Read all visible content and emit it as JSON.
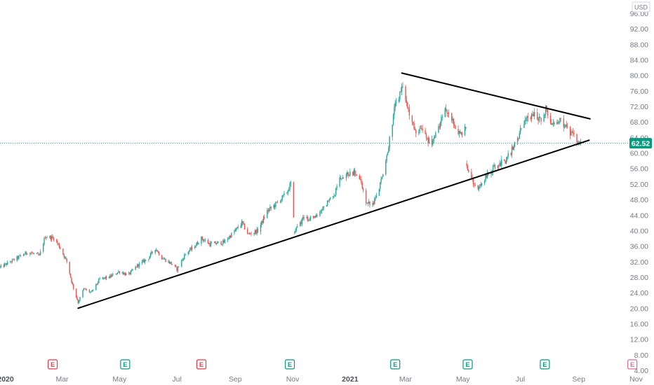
{
  "chart_data": {
    "type": "candlestick",
    "currency": "USD",
    "last_price": 62.52,
    "last_price_label": "62.52",
    "y_axis": {
      "range": [
        4,
        96
      ],
      "ticks": [
        "96.00",
        "92.00",
        "88.00",
        "84.00",
        "80.00",
        "76.00",
        "72.00",
        "68.00",
        "64.00",
        "60.00",
        "56.00",
        "52.00",
        "48.00",
        "44.00",
        "40.00",
        "36.00",
        "32.00",
        "28.00",
        "24.00",
        "20.00",
        "16.00",
        "12.00",
        "8.00",
        "4.00"
      ]
    },
    "x_axis": {
      "range": [
        "2019-12-26",
        "2021-11-20"
      ],
      "ticks": [
        {
          "label": "2020",
          "date": "2020-01-01",
          "year": true
        },
        {
          "label": "Mar",
          "date": "2020-03-01"
        },
        {
          "label": "May",
          "date": "2020-05-01"
        },
        {
          "label": "Jul",
          "date": "2020-07-01"
        },
        {
          "label": "Sep",
          "date": "2020-09-01"
        },
        {
          "label": "Nov",
          "date": "2020-11-01"
        },
        {
          "label": "2021",
          "date": "2021-01-01",
          "year": true
        },
        {
          "label": "Mar",
          "date": "2021-03-01"
        },
        {
          "label": "May",
          "date": "2021-05-01"
        },
        {
          "label": "Jul",
          "date": "2021-07-01"
        },
        {
          "label": "Sep",
          "date": "2021-09-01"
        },
        {
          "label": "Nov",
          "date": "2021-11-01"
        }
      ]
    },
    "earnings_markers": [
      {
        "label": "E",
        "date": "2020-02-20",
        "color": "#f23645"
      },
      {
        "label": "E",
        "date": "2020-05-07",
        "color": "#089981"
      },
      {
        "label": "E",
        "date": "2020-07-27",
        "color": "#f23645"
      },
      {
        "label": "E",
        "date": "2020-10-29",
        "color": "#089981"
      },
      {
        "label": "E",
        "date": "2021-02-18",
        "color": "#089981"
      },
      {
        "label": "E",
        "date": "2021-05-06",
        "color": "#089981"
      },
      {
        "label": "E",
        "date": "2021-07-27",
        "color": "#089981"
      },
      {
        "label": "E",
        "date": "2021-10-28",
        "color": "#e0689a"
      }
    ],
    "trendlines": [
      {
        "name": "support",
        "from": {
          "date": "2020-03-18",
          "value": 20.0
        },
        "to": {
          "date": "2021-09-12",
          "value": 63.3
        }
      },
      {
        "name": "resistance",
        "from": {
          "date": "2021-02-25",
          "value": 80.6
        },
        "to": {
          "date": "2021-09-13",
          "value": 68.8
        }
      }
    ],
    "anchors": [
      [
        "2019-12-26",
        30.5
      ],
      [
        "2020-01-10",
        32.5
      ],
      [
        "2020-01-25",
        34.5
      ],
      [
        "2020-02-06",
        33.5
      ],
      [
        "2020-02-12",
        38.5
      ],
      [
        "2020-02-22",
        38.0
      ],
      [
        "2020-02-28",
        35.5
      ],
      [
        "2020-03-06",
        32.0
      ],
      [
        "2020-03-12",
        26.0
      ],
      [
        "2020-03-18",
        21.5
      ],
      [
        "2020-03-24",
        25.0
      ],
      [
        "2020-04-01",
        24.0
      ],
      [
        "2020-04-10",
        27.5
      ],
      [
        "2020-04-20",
        28.0
      ],
      [
        "2020-05-01",
        29.5
      ],
      [
        "2020-05-10",
        28.5
      ],
      [
        "2020-05-20",
        31.0
      ],
      [
        "2020-06-01",
        33.0
      ],
      [
        "2020-06-08",
        35.5
      ],
      [
        "2020-06-15",
        33.0
      ],
      [
        "2020-06-25",
        31.5
      ],
      [
        "2020-07-01",
        30.0
      ],
      [
        "2020-07-10",
        34.0
      ],
      [
        "2020-07-20",
        36.0
      ],
      [
        "2020-07-27",
        38.0
      ],
      [
        "2020-08-05",
        36.5
      ],
      [
        "2020-08-20",
        37.0
      ],
      [
        "2020-09-01",
        40.0
      ],
      [
        "2020-09-08",
        42.0
      ],
      [
        "2020-09-15",
        39.0
      ],
      [
        "2020-09-25",
        40.0
      ],
      [
        "2020-10-05",
        45.0
      ],
      [
        "2020-10-15",
        47.0
      ],
      [
        "2020-10-25",
        49.5
      ],
      [
        "2020-10-30",
        52.0
      ],
      [
        "2020-11-03",
        40.0
      ],
      [
        "2020-11-12",
        43.0
      ],
      [
        "2020-11-25",
        43.5
      ],
      [
        "2020-12-05",
        46.5
      ],
      [
        "2020-12-15",
        49.0
      ],
      [
        "2020-12-22",
        54.0
      ],
      [
        "2021-01-05",
        55.0
      ],
      [
        "2021-01-12",
        53.0
      ],
      [
        "2021-01-18",
        47.5
      ],
      [
        "2021-01-25",
        46.5
      ],
      [
        "2021-02-01",
        51.0
      ],
      [
        "2021-02-10",
        60.0
      ],
      [
        "2021-02-14",
        67.0
      ],
      [
        "2021-02-18",
        72.0
      ],
      [
        "2021-02-25",
        77.0
      ],
      [
        "2021-03-03",
        72.0
      ],
      [
        "2021-03-10",
        66.0
      ],
      [
        "2021-03-20",
        66.0
      ],
      [
        "2021-03-28",
        62.0
      ],
      [
        "2021-04-05",
        66.0
      ],
      [
        "2021-04-12",
        72.0
      ],
      [
        "2021-04-20",
        68.0
      ],
      [
        "2021-04-27",
        65.0
      ],
      [
        "2021-05-04",
        66.0
      ],
      [
        "2021-05-05",
        57.0
      ],
      [
        "2021-05-12",
        52.0
      ],
      [
        "2021-05-18",
        51.0
      ],
      [
        "2021-05-26",
        54.0
      ],
      [
        "2021-06-05",
        57.0
      ],
      [
        "2021-06-15",
        58.0
      ],
      [
        "2021-06-25",
        62.0
      ],
      [
        "2021-07-05",
        68.0
      ],
      [
        "2021-07-15",
        70.0
      ],
      [
        "2021-07-22",
        68.5
      ],
      [
        "2021-07-28",
        71.5
      ],
      [
        "2021-08-05",
        67.0
      ],
      [
        "2021-08-12",
        69.0
      ],
      [
        "2021-08-20",
        66.0
      ],
      [
        "2021-08-30",
        63.0
      ],
      [
        "2021-09-04",
        62.5
      ]
    ]
  }
}
